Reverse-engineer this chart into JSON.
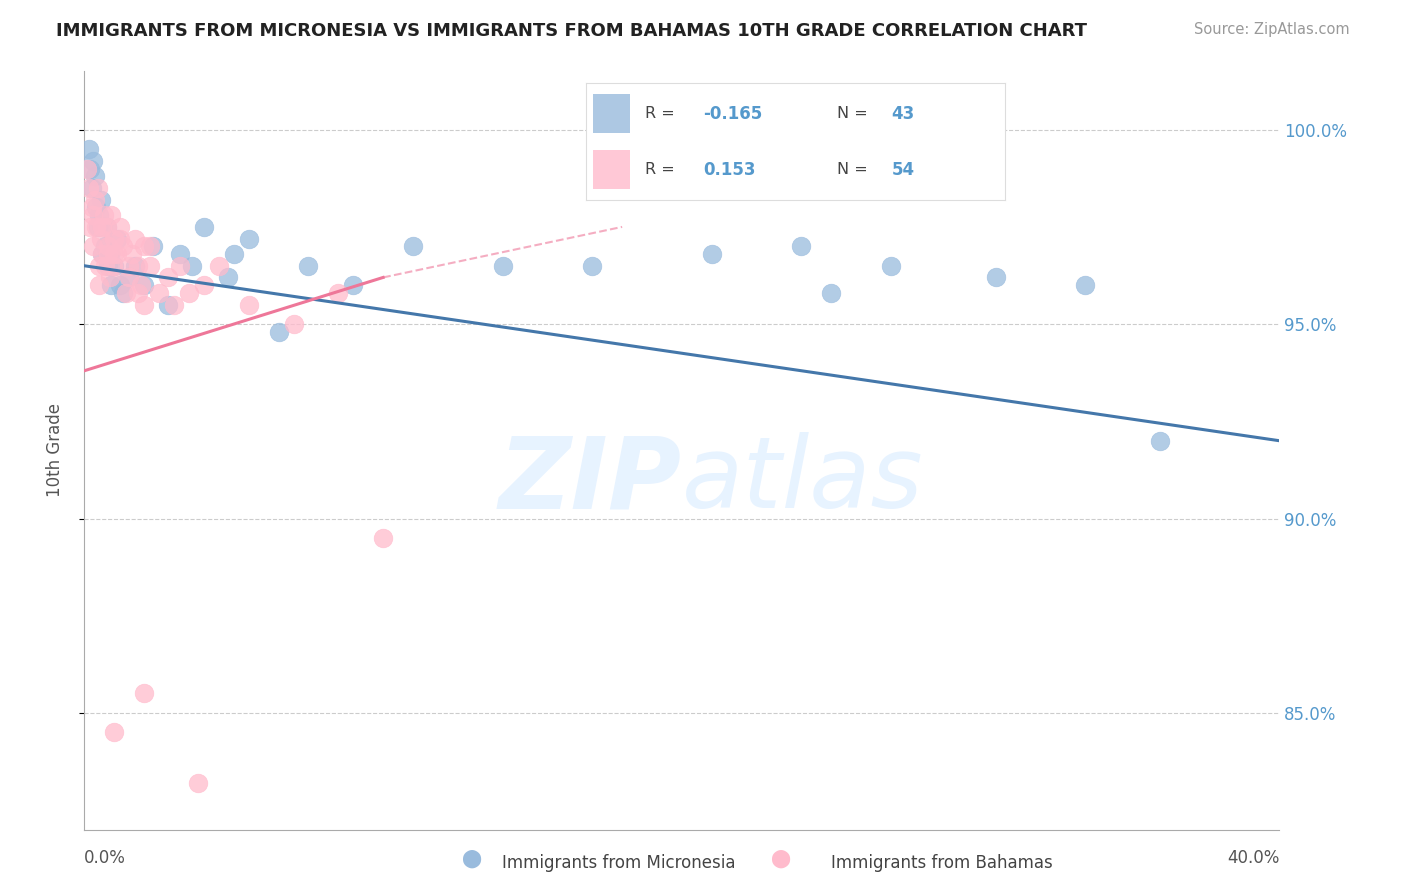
{
  "title": "IMMIGRANTS FROM MICRONESIA VS IMMIGRANTS FROM BAHAMAS 10TH GRADE CORRELATION CHART",
  "source": "Source: ZipAtlas.com",
  "ylabel": "10th Grade",
  "xlim": [
    0.0,
    40.0
  ],
  "ylim": [
    82.0,
    101.5
  ],
  "yticks": [
    85.0,
    90.0,
    95.0,
    100.0
  ],
  "ytick_labels": [
    "85.0%",
    "90.0%",
    "95.0%",
    "100.0%"
  ],
  "blue_R": -0.165,
  "blue_N": 43,
  "pink_R": 0.153,
  "pink_N": 54,
  "blue_color": "#99BBDD",
  "pink_color": "#FFBBCC",
  "blue_line_color": "#4477AA",
  "pink_line_color": "#EE7799",
  "blue_scatter_x": [
    0.15,
    0.2,
    0.25,
    0.3,
    0.35,
    0.4,
    0.45,
    0.5,
    0.55,
    0.6,
    0.7,
    0.75,
    0.8,
    0.85,
    0.9,
    1.0,
    1.1,
    1.2,
    1.3,
    1.5,
    1.7,
    2.0,
    2.3,
    2.8,
    3.2,
    3.6,
    4.0,
    5.0,
    5.5,
    6.5,
    7.5,
    9.0,
    11.0,
    14.0,
    17.0,
    21.0,
    24.0,
    27.0,
    30.5,
    33.5,
    25.0,
    4.8,
    36.0
  ],
  "blue_scatter_y": [
    99.5,
    99.0,
    98.5,
    99.2,
    98.8,
    98.0,
    97.5,
    97.8,
    98.2,
    96.8,
    97.0,
    97.5,
    96.5,
    96.8,
    96.0,
    96.5,
    97.2,
    96.0,
    95.8,
    96.2,
    96.5,
    96.0,
    97.0,
    95.5,
    96.8,
    96.5,
    97.5,
    96.8,
    97.2,
    94.8,
    96.5,
    96.0,
    97.0,
    96.5,
    96.5,
    96.8,
    97.0,
    96.5,
    96.2,
    96.0,
    95.8,
    96.2,
    92.0
  ],
  "pink_scatter_x": [
    0.1,
    0.15,
    0.2,
    0.25,
    0.3,
    0.35,
    0.4,
    0.45,
    0.5,
    0.55,
    0.6,
    0.65,
    0.7,
    0.75,
    0.8,
    0.85,
    0.9,
    0.95,
    1.0,
    1.1,
    1.2,
    1.3,
    1.4,
    1.5,
    1.6,
    1.7,
    1.8,
    1.9,
    2.0,
    2.2,
    2.5,
    2.8,
    3.0,
    3.5,
    4.0,
    4.5,
    5.5,
    7.0,
    8.5,
    10.0,
    2.0,
    0.5,
    1.0,
    3.2,
    1.8,
    0.3,
    0.6,
    1.5,
    2.2,
    0.8,
    1.2,
    1.0,
    2.0,
    3.8
  ],
  "pink_scatter_y": [
    99.0,
    98.5,
    97.5,
    98.0,
    97.8,
    98.2,
    97.5,
    98.5,
    96.5,
    97.2,
    96.8,
    97.8,
    96.5,
    97.5,
    97.0,
    96.2,
    97.8,
    96.5,
    97.2,
    96.8,
    97.5,
    97.0,
    95.8,
    96.5,
    96.8,
    97.2,
    96.5,
    96.0,
    97.0,
    96.5,
    95.8,
    96.2,
    95.5,
    95.8,
    96.0,
    96.5,
    95.5,
    95.0,
    95.8,
    89.5,
    95.5,
    96.0,
    96.8,
    96.5,
    95.8,
    97.0,
    97.5,
    96.2,
    97.0,
    96.8,
    97.2,
    84.5,
    85.5,
    83.2
  ]
}
